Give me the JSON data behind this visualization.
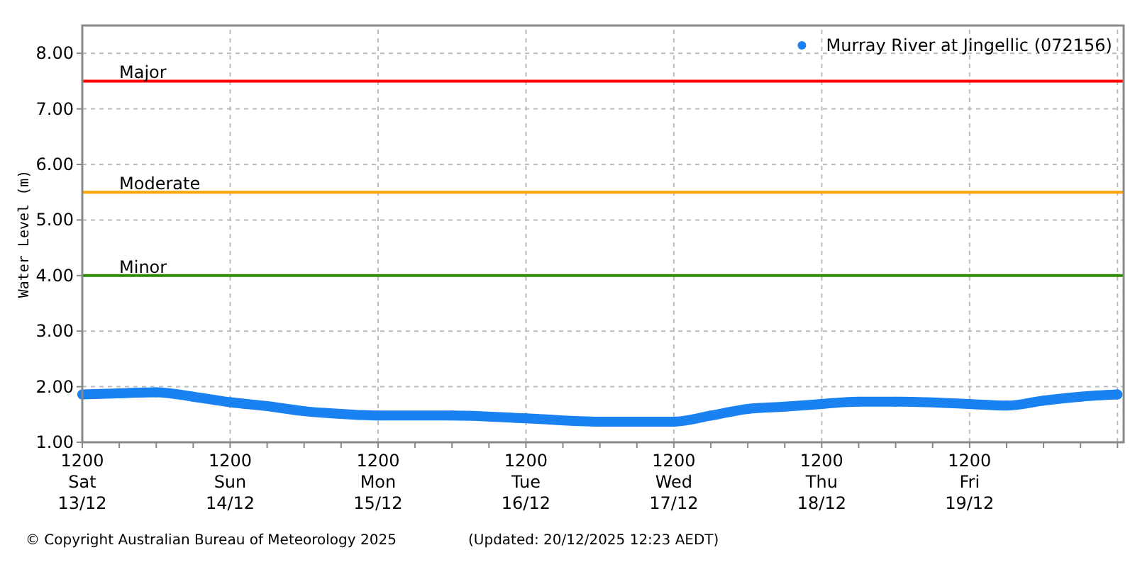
{
  "chart_data": {
    "type": "line",
    "ylabel": "Water Level (m)",
    "x": [
      "2025-12-13T12:00",
      "2025-12-13T18:00",
      "2025-12-14T00:00",
      "2025-12-14T06:00",
      "2025-12-14T12:00",
      "2025-12-14T18:00",
      "2025-12-15T00:00",
      "2025-12-15T06:00",
      "2025-12-15T12:00",
      "2025-12-16T00:00",
      "2025-12-16T12:00",
      "2025-12-17T00:00",
      "2025-12-17T12:00",
      "2025-12-17T18:00",
      "2025-12-18T00:00",
      "2025-12-18T06:00",
      "2025-12-18T12:00",
      "2025-12-18T18:00",
      "2025-12-19T00:00",
      "2025-12-19T12:00",
      "2025-12-19T18:00",
      "2025-12-20T00:00",
      "2025-12-20T06:00",
      "2025-12-20T12:00"
    ],
    "series": [
      {
        "name": "Murray River at Jingellic (072156)",
        "color": "#1a82f0",
        "values": [
          1.86,
          1.88,
          1.9,
          1.82,
          1.72,
          1.65,
          1.56,
          1.51,
          1.48,
          1.48,
          1.43,
          1.37,
          1.37,
          1.48,
          1.6,
          1.64,
          1.69,
          1.73,
          1.73,
          1.69,
          1.66,
          1.75,
          1.82,
          1.86
        ]
      }
    ],
    "xlim": [
      "2025-12-13T12:00",
      "2025-12-20T13:00"
    ],
    "xticks": [
      {
        "value": "2025-12-13T12:00",
        "label": "1200\nSat\n13/12"
      },
      {
        "value": "2025-12-13T18:00",
        "label": null
      },
      {
        "value": "2025-12-14T00:00",
        "label": null
      },
      {
        "value": "2025-12-14T06:00",
        "label": null
      },
      {
        "value": "2025-12-14T12:00",
        "label": "1200\nSun\n14/12"
      },
      {
        "value": "2025-12-14T18:00",
        "label": null
      },
      {
        "value": "2025-12-15T00:00",
        "label": null
      },
      {
        "value": "2025-12-15T06:00",
        "label": null
      },
      {
        "value": "2025-12-15T12:00",
        "label": "1200\nMon\n15/12"
      },
      {
        "value": "2025-12-15T18:00",
        "label": null
      },
      {
        "value": "2025-12-16T00:00",
        "label": null
      },
      {
        "value": "2025-12-16T06:00",
        "label": null
      },
      {
        "value": "2025-12-16T12:00",
        "label": "1200\nTue\n16/12"
      },
      {
        "value": "2025-12-16T18:00",
        "label": null
      },
      {
        "value": "2025-12-17T00:00",
        "label": null
      },
      {
        "value": "2025-12-17T06:00",
        "label": null
      },
      {
        "value": "2025-12-17T12:00",
        "label": "1200\nWed\n17/12"
      },
      {
        "value": "2025-12-17T18:00",
        "label": null
      },
      {
        "value": "2025-12-18T00:00",
        "label": null
      },
      {
        "value": "2025-12-18T06:00",
        "label": null
      },
      {
        "value": "2025-12-18T12:00",
        "label": "1200\nThu\n18/12"
      },
      {
        "value": "2025-12-18T18:00",
        "label": null
      },
      {
        "value": "2025-12-19T00:00",
        "label": null
      },
      {
        "value": "2025-12-19T06:00",
        "label": null
      },
      {
        "value": "2025-12-19T12:00",
        "label": "1200\nFri\n19/12"
      },
      {
        "value": "2025-12-19T18:00",
        "label": null
      },
      {
        "value": "2025-12-20T00:00",
        "label": null
      },
      {
        "value": "2025-12-20T06:00",
        "label": null
      },
      {
        "value": "2025-12-20T12:00",
        "label": null
      }
    ],
    "ylim": [
      1,
      8.5
    ],
    "yticks": [
      {
        "value": 1,
        "label": "1.00"
      },
      {
        "value": 2,
        "label": "2.00"
      },
      {
        "value": 3,
        "label": "3.00"
      },
      {
        "value": 4,
        "label": "4.00"
      },
      {
        "value": 5,
        "label": "5.00"
      },
      {
        "value": 6,
        "label": "6.00"
      },
      {
        "value": 7,
        "label": "7.00"
      },
      {
        "value": 8,
        "label": "8.00"
      }
    ],
    "ref_lines": [
      {
        "axis": "y",
        "value": 7.5,
        "label": "Major",
        "color": "#ff0000"
      },
      {
        "axis": "y",
        "value": 5.5,
        "label": "Moderate",
        "color": "#ffa500"
      },
      {
        "axis": "y",
        "value": 4,
        "label": "Minor",
        "color": "#2e8b00"
      }
    ],
    "annotations": [
      "© Copyright Australian Bureau of Meteorology 2025",
      "(Updated: 20/12/2025 12:23 AEDT)"
    ],
    "grid": true,
    "legend": "top right",
    "marker": "circle",
    "line_style": "solid"
  }
}
